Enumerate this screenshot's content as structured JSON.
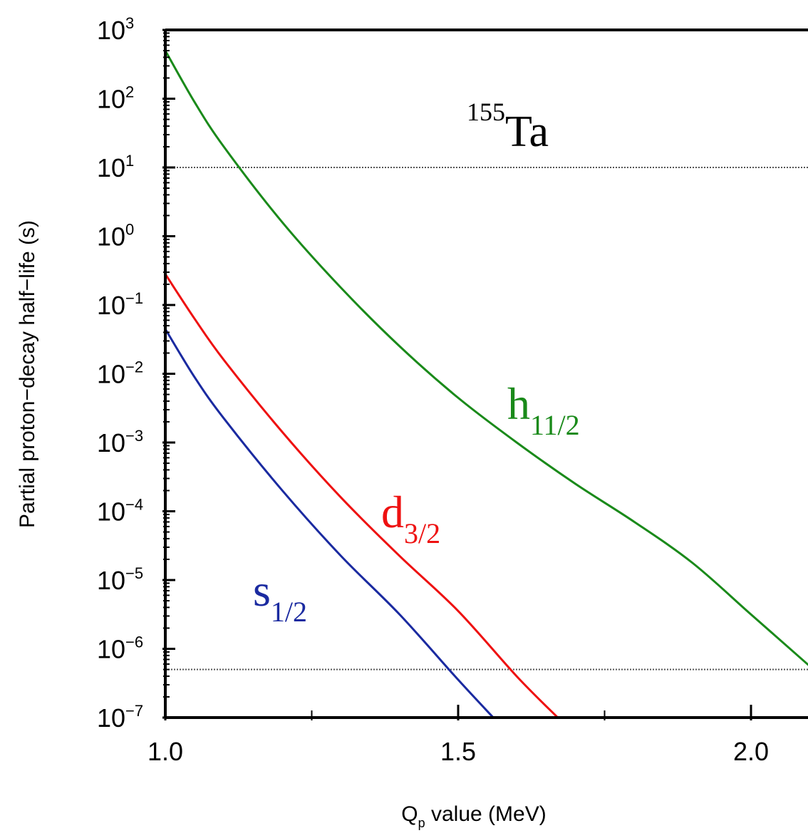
{
  "chart_data": {
    "type": "line",
    "title": "",
    "nuclide": {
      "mass_number": "155",
      "symbol": "Ta"
    },
    "xlabel": {
      "main": "Q",
      "sub": "p",
      "rest": " value (MeV)"
    },
    "ylabel": "Partial proton−decay half−life (s)",
    "x_scale": "linear",
    "y_scale": "log",
    "xlim": [
      1.0,
      2.1
    ],
    "ylim": [
      1e-07,
      1000
    ],
    "grid": false,
    "legend": "none",
    "x_ticks": [
      {
        "value": 1.0,
        "label": "1.0"
      },
      {
        "value": 1.5,
        "label": "1.5"
      },
      {
        "value": 2.0,
        "label": "2.0"
      }
    ],
    "y_ticks": [
      {
        "exp": 3,
        "base": "10",
        "sup": "3"
      },
      {
        "exp": 2,
        "base": "10",
        "sup": "2"
      },
      {
        "exp": 1,
        "base": "10",
        "sup": "1"
      },
      {
        "exp": 0,
        "base": "10",
        "sup": "0"
      },
      {
        "exp": -1,
        "base": "10",
        "sup": "−1"
      },
      {
        "exp": -2,
        "base": "10",
        "sup": "−2"
      },
      {
        "exp": -3,
        "base": "10",
        "sup": "−3"
      },
      {
        "exp": -4,
        "base": "10",
        "sup": "−4"
      },
      {
        "exp": -5,
        "base": "10",
        "sup": "−5"
      },
      {
        "exp": -6,
        "base": "10",
        "sup": "−6"
      },
      {
        "exp": -7,
        "base": "10",
        "sup": "−7"
      }
    ],
    "reference_lines": [
      {
        "y": 10,
        "style": "dotted",
        "color": "#555555"
      },
      {
        "y": 5e-07,
        "style": "dotted",
        "color": "#555555"
      }
    ],
    "series": [
      {
        "name": "h11/2",
        "label_main": "h",
        "label_sub": "11/2",
        "color": "#1a8a1a",
        "x": [
          1.0,
          1.05,
          1.1,
          1.2,
          1.3,
          1.4,
          1.5,
          1.6,
          1.7,
          1.8,
          1.9,
          2.0,
          2.1
        ],
        "y_log10": [
          2.7,
          1.95,
          1.3,
          0.2,
          -0.75,
          -1.6,
          -2.35,
          -3.0,
          -3.6,
          -4.15,
          -4.75,
          -5.5,
          -6.25
        ]
      },
      {
        "name": "d3/2",
        "label_main": "d",
        "label_sub": "3/2",
        "color": "#ee1111",
        "x": [
          1.0,
          1.05,
          1.1,
          1.2,
          1.3,
          1.4,
          1.5,
          1.6,
          1.67
        ],
        "y_log10": [
          -0.55,
          -1.2,
          -1.8,
          -2.85,
          -3.8,
          -4.65,
          -5.45,
          -6.4,
          -7.0
        ]
      },
      {
        "name": "s1/2",
        "label_main": "s",
        "label_sub": "1/2",
        "color": "#1a2aa0",
        "x": [
          1.0,
          1.05,
          1.1,
          1.2,
          1.3,
          1.4,
          1.5,
          1.56
        ],
        "y_log10": [
          -1.35,
          -2.05,
          -2.65,
          -3.7,
          -4.65,
          -5.5,
          -6.45,
          -7.0
        ]
      }
    ]
  }
}
